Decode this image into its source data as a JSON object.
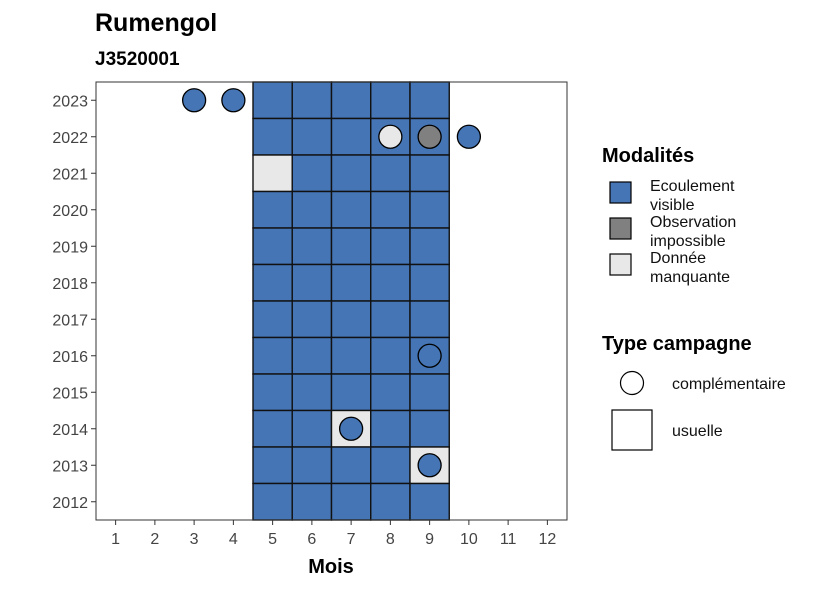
{
  "chart_data": {
    "type": "heatmap",
    "title": "Rumengol",
    "subtitle": "J3520001",
    "xlabel": "Mois",
    "ylabel": "",
    "x_ticks": [
      1,
      2,
      3,
      4,
      5,
      6,
      7,
      8,
      9,
      10,
      11,
      12
    ],
    "y_ticks": [
      2012,
      2013,
      2014,
      2015,
      2016,
      2017,
      2018,
      2019,
      2020,
      2021,
      2022,
      2023
    ],
    "xlim": [
      0.5,
      12.5
    ],
    "ylim": [
      2011.5,
      2023.5
    ],
    "grid": false,
    "legend_position": "right",
    "categories": [
      {
        "key": "ecoulement",
        "label_lines": [
          "Ecoulement",
          "visible"
        ],
        "color": "#4575b4"
      },
      {
        "key": "obs_impossible",
        "label_lines": [
          "Observation",
          "impossible"
        ],
        "color": "#808080"
      },
      {
        "key": "manquante",
        "label_lines": [
          "Donnée",
          "manquante"
        ],
        "color": "#e8e8e8"
      }
    ],
    "campaign_types": [
      {
        "key": "complementaire",
        "label": "complémentaire",
        "shape": "circle"
      },
      {
        "key": "usuelle",
        "label": "usuelle",
        "shape": "square"
      }
    ],
    "tiles": [
      {
        "x": 5,
        "y": 2023,
        "m": "ecoulement"
      },
      {
        "x": 6,
        "y": 2023,
        "m": "ecoulement"
      },
      {
        "x": 7,
        "y": 2023,
        "m": "ecoulement"
      },
      {
        "x": 8,
        "y": 2023,
        "m": "ecoulement"
      },
      {
        "x": 9,
        "y": 2023,
        "m": "ecoulement"
      },
      {
        "x": 5,
        "y": 2022,
        "m": "ecoulement"
      },
      {
        "x": 6,
        "y": 2022,
        "m": "ecoulement"
      },
      {
        "x": 7,
        "y": 2022,
        "m": "ecoulement"
      },
      {
        "x": 8,
        "y": 2022,
        "m": "ecoulement"
      },
      {
        "x": 9,
        "y": 2022,
        "m": "ecoulement"
      },
      {
        "x": 5,
        "y": 2021,
        "m": "manquante"
      },
      {
        "x": 6,
        "y": 2021,
        "m": "ecoulement"
      },
      {
        "x": 7,
        "y": 2021,
        "m": "ecoulement"
      },
      {
        "x": 8,
        "y": 2021,
        "m": "ecoulement"
      },
      {
        "x": 9,
        "y": 2021,
        "m": "ecoulement"
      },
      {
        "x": 5,
        "y": 2020,
        "m": "ecoulement"
      },
      {
        "x": 6,
        "y": 2020,
        "m": "ecoulement"
      },
      {
        "x": 7,
        "y": 2020,
        "m": "ecoulement"
      },
      {
        "x": 8,
        "y": 2020,
        "m": "ecoulement"
      },
      {
        "x": 9,
        "y": 2020,
        "m": "ecoulement"
      },
      {
        "x": 5,
        "y": 2019,
        "m": "ecoulement"
      },
      {
        "x": 6,
        "y": 2019,
        "m": "ecoulement"
      },
      {
        "x": 7,
        "y": 2019,
        "m": "ecoulement"
      },
      {
        "x": 8,
        "y": 2019,
        "m": "ecoulement"
      },
      {
        "x": 9,
        "y": 2019,
        "m": "ecoulement"
      },
      {
        "x": 5,
        "y": 2018,
        "m": "ecoulement"
      },
      {
        "x": 6,
        "y": 2018,
        "m": "ecoulement"
      },
      {
        "x": 7,
        "y": 2018,
        "m": "ecoulement"
      },
      {
        "x": 8,
        "y": 2018,
        "m": "ecoulement"
      },
      {
        "x": 9,
        "y": 2018,
        "m": "ecoulement"
      },
      {
        "x": 5,
        "y": 2017,
        "m": "ecoulement"
      },
      {
        "x": 6,
        "y": 2017,
        "m": "ecoulement"
      },
      {
        "x": 7,
        "y": 2017,
        "m": "ecoulement"
      },
      {
        "x": 8,
        "y": 2017,
        "m": "ecoulement"
      },
      {
        "x": 9,
        "y": 2017,
        "m": "ecoulement"
      },
      {
        "x": 5,
        "y": 2016,
        "m": "ecoulement"
      },
      {
        "x": 6,
        "y": 2016,
        "m": "ecoulement"
      },
      {
        "x": 7,
        "y": 2016,
        "m": "ecoulement"
      },
      {
        "x": 8,
        "y": 2016,
        "m": "ecoulement"
      },
      {
        "x": 9,
        "y": 2016,
        "m": "ecoulement"
      },
      {
        "x": 5,
        "y": 2015,
        "m": "ecoulement"
      },
      {
        "x": 6,
        "y": 2015,
        "m": "ecoulement"
      },
      {
        "x": 7,
        "y": 2015,
        "m": "ecoulement"
      },
      {
        "x": 8,
        "y": 2015,
        "m": "ecoulement"
      },
      {
        "x": 9,
        "y": 2015,
        "m": "ecoulement"
      },
      {
        "x": 5,
        "y": 2014,
        "m": "ecoulement"
      },
      {
        "x": 6,
        "y": 2014,
        "m": "ecoulement"
      },
      {
        "x": 7,
        "y": 2014,
        "m": "manquante"
      },
      {
        "x": 8,
        "y": 2014,
        "m": "ecoulement"
      },
      {
        "x": 9,
        "y": 2014,
        "m": "ecoulement"
      },
      {
        "x": 5,
        "y": 2013,
        "m": "ecoulement"
      },
      {
        "x": 6,
        "y": 2013,
        "m": "ecoulement"
      },
      {
        "x": 7,
        "y": 2013,
        "m": "ecoulement"
      },
      {
        "x": 8,
        "y": 2013,
        "m": "ecoulement"
      },
      {
        "x": 9,
        "y": 2013,
        "m": "manquante"
      },
      {
        "x": 5,
        "y": 2012,
        "m": "ecoulement"
      },
      {
        "x": 6,
        "y": 2012,
        "m": "ecoulement"
      },
      {
        "x": 7,
        "y": 2012,
        "m": "ecoulement"
      },
      {
        "x": 8,
        "y": 2012,
        "m": "ecoulement"
      },
      {
        "x": 9,
        "y": 2012,
        "m": "ecoulement"
      }
    ],
    "points": [
      {
        "x": 3,
        "y": 2023,
        "m": "ecoulement"
      },
      {
        "x": 4,
        "y": 2023,
        "m": "ecoulement"
      },
      {
        "x": 8,
        "y": 2022,
        "m": "manquante"
      },
      {
        "x": 9,
        "y": 2022,
        "m": "obs_impossible"
      },
      {
        "x": 10,
        "y": 2022,
        "m": "ecoulement"
      },
      {
        "x": 9,
        "y": 2016,
        "m": "ecoulement"
      },
      {
        "x": 7,
        "y": 2014,
        "m": "ecoulement"
      },
      {
        "x": 9,
        "y": 2013,
        "m": "ecoulement"
      }
    ]
  },
  "legend": {
    "modalites_title": "Modalités",
    "type_title": "Type campagne"
  }
}
